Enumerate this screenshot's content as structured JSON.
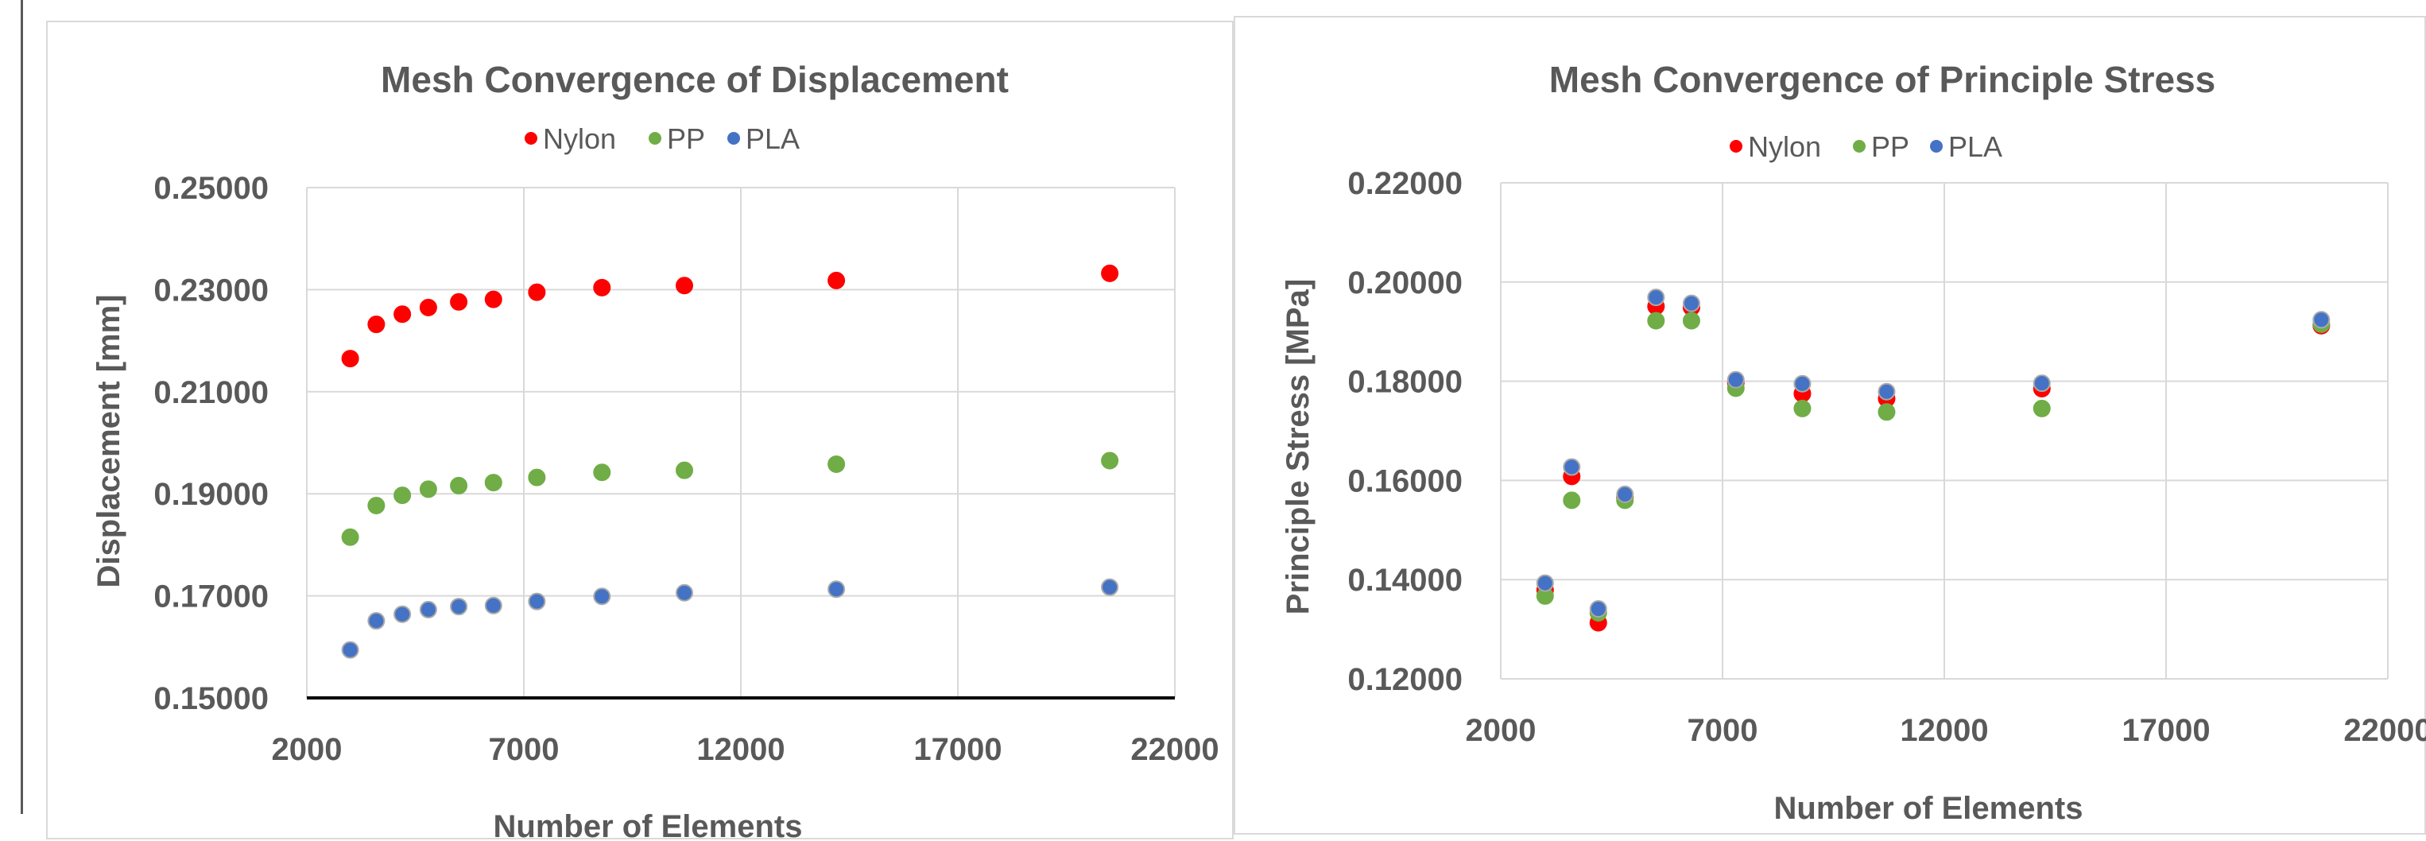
{
  "chart_data": [
    {
      "type": "scatter",
      "title": "Mesh Convergence of Displacement",
      "xlabel": "Number of Elements",
      "ylabel": "Displacement [mm]",
      "xlim": [
        2000,
        22000
      ],
      "ylim": [
        0.15,
        0.25
      ],
      "xticks": [
        "2000",
        "7000",
        "12000",
        "17000",
        "22000"
      ],
      "yticks": [
        "0.15000",
        "0.17000",
        "0.19000",
        "0.21000",
        "0.23000",
        "0.25000"
      ],
      "grid": true,
      "legend_position": "top",
      "series": [
        {
          "name": "Nylon",
          "color": "#ff0000",
          "x": [
            3000,
            3600,
            4200,
            4800,
            5500,
            6300,
            7300,
            8800,
            10700,
            14200,
            20500
          ],
          "y": [
            0.2165,
            0.2232,
            0.2252,
            0.2265,
            0.2276,
            0.2281,
            0.2295,
            0.2304,
            0.2308,
            0.2318,
            0.2332
          ]
        },
        {
          "name": "PP",
          "color": "#70ad47",
          "x": [
            3000,
            3600,
            4200,
            4800,
            5500,
            6300,
            7300,
            8800,
            10700,
            14200,
            20500
          ],
          "y": [
            0.1815,
            0.1877,
            0.1897,
            0.1909,
            0.1916,
            0.1922,
            0.1932,
            0.1942,
            0.1946,
            0.1958,
            0.1965
          ]
        },
        {
          "name": "PLA",
          "color": "#4472c4",
          "x": [
            3000,
            3600,
            4200,
            4800,
            5500,
            6300,
            7300,
            8800,
            10700,
            14200,
            20500
          ],
          "y": [
            0.1594,
            0.1651,
            0.1664,
            0.1673,
            0.1679,
            0.1681,
            0.1689,
            0.1699,
            0.1706,
            0.1713,
            0.1717
          ]
        }
      ]
    },
    {
      "type": "scatter",
      "title": "Mesh Convergence of Principle Stress",
      "xlabel": "Number of Elements",
      "ylabel": "Principle Stress [MPa]",
      "xlim": [
        2000,
        22000
      ],
      "ylim": [
        0.12,
        0.22
      ],
      "xticks": [
        "2000",
        "7000",
        "12000",
        "17000",
        "22000"
      ],
      "yticks": [
        "0.12000",
        "0.14000",
        "0.16000",
        "0.18000",
        "0.20000",
        "0.22000"
      ],
      "grid": true,
      "legend_position": "top",
      "series": [
        {
          "name": "Nylon",
          "color": "#ff0000",
          "x": [
            3000,
            3600,
            4200,
            4800,
            5500,
            6300,
            7300,
            8800,
            10700,
            14200,
            20500
          ],
          "y": [
            0.1379,
            0.1608,
            0.1313,
            0.1566,
            0.1951,
            0.1949,
            0.1797,
            0.1775,
            0.1765,
            0.1785,
            0.1912
          ]
        },
        {
          "name": "PP",
          "color": "#70ad47",
          "x": [
            3000,
            3600,
            4200,
            4800,
            5500,
            6300,
            7300,
            8800,
            10700,
            14200,
            20500
          ],
          "y": [
            0.1367,
            0.156,
            0.1333,
            0.156,
            0.1922,
            0.1922,
            0.1786,
            0.1745,
            0.1738,
            0.1745,
            0.1915
          ]
        },
        {
          "name": "PLA",
          "color": "#4472c4",
          "x": [
            3000,
            3600,
            4200,
            4800,
            5500,
            6300,
            7300,
            8800,
            10700,
            14200,
            20500
          ],
          "y": [
            0.1393,
            0.1627,
            0.1341,
            0.1572,
            0.1969,
            0.1957,
            0.1803,
            0.1795,
            0.1779,
            0.1796,
            0.1924
          ]
        }
      ]
    }
  ]
}
